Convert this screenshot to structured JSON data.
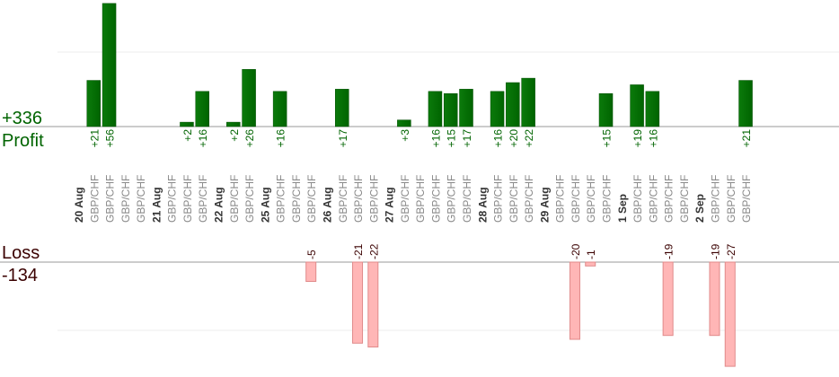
{
  "chart_data": {
    "type": "bar",
    "profit_total": "+336",
    "profit_label": "Profit",
    "loss_label": "Loss",
    "loss_total": "-134",
    "pair": "GBP/CHF",
    "dates": [
      {
        "label": "20 Aug",
        "trades": [
          21,
          56,
          null,
          null
        ]
      },
      {
        "label": "21 Aug",
        "trades": [
          null,
          2,
          16
        ]
      },
      {
        "label": "22 Aug",
        "trades": [
          2,
          26
        ]
      },
      {
        "label": "25 Aug",
        "trades": [
          16,
          null,
          -5
        ]
      },
      {
        "label": "26 Aug",
        "trades": [
          17,
          -21,
          -22
        ]
      },
      {
        "label": "27 Aug",
        "trades": [
          3,
          null,
          16,
          15,
          17
        ]
      },
      {
        "label": "28 Aug",
        "trades": [
          16,
          20,
          22
        ]
      },
      {
        "label": "29 Aug",
        "trades": [
          null,
          -20,
          -1,
          15
        ]
      },
      {
        "label": "1 Sep",
        "trades": [
          19,
          16,
          -19,
          null
        ]
      },
      {
        "label": "2 Sep",
        "trades": [
          -19,
          -27,
          21
        ]
      }
    ],
    "colors": {
      "profit": "#006400",
      "loss": "#ffb6b6",
      "loss_stroke": "#e08a8a",
      "profit_text": "#006400",
      "loss_text": "#3a0000"
    }
  }
}
